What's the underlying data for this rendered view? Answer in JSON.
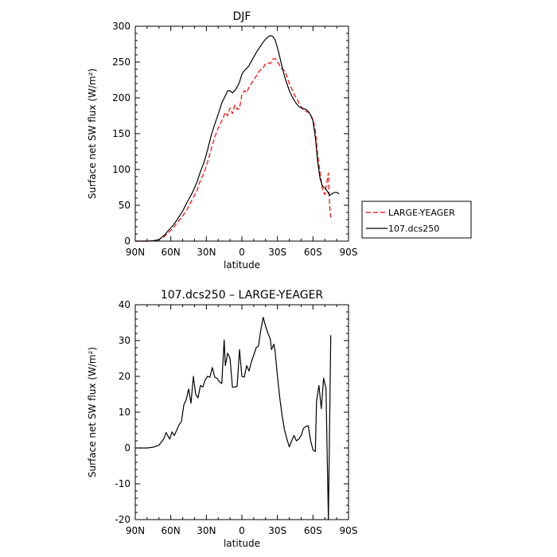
{
  "chart_data": [
    {
      "type": "line",
      "title": "DJF",
      "xlabel": "latitude",
      "ylabel": "Surface net SW flux (W/m²)",
      "xlim": [
        90,
        -90
      ],
      "ylim": [
        0,
        300
      ],
      "x_ticks": [
        {
          "v": 90,
          "label": "90N"
        },
        {
          "v": 60,
          "label": "60N"
        },
        {
          "v": 30,
          "label": "30N"
        },
        {
          "v": 0,
          "label": "0"
        },
        {
          "v": -30,
          "label": "30S"
        },
        {
          "v": -60,
          "label": "60S"
        },
        {
          "v": -90,
          "label": "90S"
        }
      ],
      "y_ticks": [
        0,
        50,
        100,
        150,
        200,
        250,
        300
      ],
      "legend": "right",
      "series": [
        {
          "name": "LARGE-YEAGER",
          "color": "#ff0000",
          "dash": "dashed",
          "points": [
            [
              90,
              0
            ],
            [
              80,
              0
            ],
            [
              75,
              0.5
            ],
            [
              70,
              2
            ],
            [
              65,
              7
            ],
            [
              62,
              12
            ],
            [
              58,
              18
            ],
            [
              55,
              25
            ],
            [
              50,
              35
            ],
            [
              46,
              45
            ],
            [
              42,
              58
            ],
            [
              38,
              70
            ],
            [
              35,
              85
            ],
            [
              32,
              95
            ],
            [
              29,
              110
            ],
            [
              26,
              128
            ],
            [
              23,
              145
            ],
            [
              20,
              158
            ],
            [
              17,
              168
            ],
            [
              14,
              180
            ],
            [
              12,
              175
            ],
            [
              10,
              186
            ],
            [
              8,
              178
            ],
            [
              6,
              190
            ],
            [
              4,
              184
            ],
            [
              2,
              185
            ],
            [
              0,
              205
            ],
            [
              -2,
              210
            ],
            [
              -4,
              207
            ],
            [
              -6,
              215
            ],
            [
              -8,
              220
            ],
            [
              -10,
              225
            ],
            [
              -12,
              230
            ],
            [
              -14,
              236
            ],
            [
              -16,
              240
            ],
            [
              -18,
              242
            ],
            [
              -20,
              248
            ],
            [
              -22,
              249
            ],
            [
              -24,
              248
            ],
            [
              -26,
              254
            ],
            [
              -28,
              255
            ],
            [
              -30,
              250
            ],
            [
              -32,
              245
            ],
            [
              -34,
              240
            ],
            [
              -36,
              238
            ],
            [
              -38,
              230
            ],
            [
              -40,
              220
            ],
            [
              -42,
              213
            ],
            [
              -44,
              205
            ],
            [
              -46,
              200
            ],
            [
              -48,
              193
            ],
            [
              -50,
              188
            ],
            [
              -52,
              183
            ],
            [
              -54,
              181
            ],
            [
              -56,
              180
            ],
            [
              -58,
              176
            ],
            [
              -60,
              170
            ],
            [
              -62,
              155
            ],
            [
              -64,
              120
            ],
            [
              -66,
              95
            ],
            [
              -68,
              72
            ],
            [
              -70,
              65
            ],
            [
              -72,
              85
            ],
            [
              -73,
              95
            ],
            [
              -74,
              50
            ],
            [
              -75,
              33
            ]
          ]
        },
        {
          "name": "107.dcs250",
          "color": "#000000",
          "dash": "solid",
          "points": [
            [
              90,
              0
            ],
            [
              80,
              0
            ],
            [
              75,
              0.5
            ],
            [
              70,
              2
            ],
            [
              65,
              9
            ],
            [
              62,
              15
            ],
            [
              58,
              22
            ],
            [
              55,
              29
            ],
            [
              50,
              42
            ],
            [
              46,
              55
            ],
            [
              42,
              67
            ],
            [
              38,
              82
            ],
            [
              35,
              97
            ],
            [
              32,
              110
            ],
            [
              29,
              127
            ],
            [
              26,
              147
            ],
            [
              23,
              163
            ],
            [
              20,
              177
            ],
            [
              17,
              193
            ],
            [
              14,
              203
            ],
            [
              12,
              210
            ],
            [
              10,
              210
            ],
            [
              8,
              207
            ],
            [
              6,
              210
            ],
            [
              4,
              215
            ],
            [
              2,
              222
            ],
            [
              0,
              233
            ],
            [
              -2,
              238
            ],
            [
              -4,
              241
            ],
            [
              -6,
              245
            ],
            [
              -8,
              251
            ],
            [
              -10,
              257
            ],
            [
              -12,
              263
            ],
            [
              -14,
              268
            ],
            [
              -16,
              273
            ],
            [
              -18,
              278
            ],
            [
              -20,
              282
            ],
            [
              -22,
              285
            ],
            [
              -24,
              287
            ],
            [
              -26,
              286
            ],
            [
              -28,
              281
            ],
            [
              -30,
              270
            ],
            [
              -32,
              257
            ],
            [
              -34,
              243
            ],
            [
              -36,
              230
            ],
            [
              -38,
              220
            ],
            [
              -40,
              210
            ],
            [
              -42,
              203
            ],
            [
              -44,
              197
            ],
            [
              -46,
              192
            ],
            [
              -48,
              188
            ],
            [
              -50,
              186
            ],
            [
              -52,
              185
            ],
            [
              -54,
              184
            ],
            [
              -56,
              181
            ],
            [
              -58,
              176
            ],
            [
              -60,
              168
            ],
            [
              -62,
              145
            ],
            [
              -64,
              110
            ],
            [
              -66,
              87
            ],
            [
              -68,
              77
            ],
            [
              -70,
              74
            ],
            [
              -72,
              70
            ],
            [
              -74,
              64
            ],
            [
              -76,
              66
            ],
            [
              -78,
              68
            ],
            [
              -80,
              68
            ],
            [
              -82,
              66
            ]
          ]
        }
      ]
    },
    {
      "type": "line",
      "title": "107.dcs250 – LARGE-YEAGER",
      "xlabel": "latitude",
      "ylabel": "Surface net SW flux (W/m²)",
      "xlim": [
        90,
        -90
      ],
      "ylim": [
        -20,
        40
      ],
      "x_ticks": [
        {
          "v": 90,
          "label": "90N"
        },
        {
          "v": 60,
          "label": "60N"
        },
        {
          "v": 30,
          "label": "30N"
        },
        {
          "v": 0,
          "label": "0"
        },
        {
          "v": -30,
          "label": "30S"
        },
        {
          "v": -60,
          "label": "60S"
        },
        {
          "v": -90,
          "label": "90S"
        }
      ],
      "y_ticks": [
        -20,
        -10,
        0,
        10,
        20,
        30,
        40
      ],
      "series": [
        {
          "name": "107.dcs250 – LARGE-YEAGER",
          "color": "#000000",
          "dash": "solid",
          "points": [
            [
              90,
              0
            ],
            [
              85,
              0
            ],
            [
              80,
              0
            ],
            [
              75,
              0.2
            ],
            [
              70,
              0.8
            ],
            [
              66,
              2.5
            ],
            [
              64,
              4.3
            ],
            [
              61,
              2.5
            ],
            [
              59,
              4.5
            ],
            [
              57,
              3.5
            ],
            [
              55,
              5
            ],
            [
              53,
              6.5
            ],
            [
              51,
              7.5
            ],
            [
              49,
              12
            ],
            [
              47,
              13.5
            ],
            [
              45,
              16.5
            ],
            [
              43,
              12.5
            ],
            [
              41,
              20
            ],
            [
              39,
              15
            ],
            [
              37,
              14
            ],
            [
              35,
              17.5
            ],
            [
              33,
              17
            ],
            [
              31,
              19
            ],
            [
              29,
              20
            ],
            [
              27,
              19.8
            ],
            [
              25,
              22.5
            ],
            [
              23,
              19.8
            ],
            [
              21,
              19.5
            ],
            [
              19,
              18.5
            ],
            [
              17,
              18
            ],
            [
              15,
              30.2
            ],
            [
              14,
              23
            ],
            [
              12,
              26.5
            ],
            [
              10,
              25
            ],
            [
              8,
              17
            ],
            [
              6,
              17
            ],
            [
              4,
              17.2
            ],
            [
              2,
              27.5
            ],
            [
              0,
              20
            ],
            [
              -2,
              19.8
            ],
            [
              -4,
              23
            ],
            [
              -6,
              21.5
            ],
            [
              -8,
              24
            ],
            [
              -10,
              26
            ],
            [
              -12,
              28
            ],
            [
              -14,
              28.5
            ],
            [
              -16,
              33
            ],
            [
              -18,
              36.5
            ],
            [
              -20,
              34
            ],
            [
              -22,
              32
            ],
            [
              -24,
              30.5
            ],
            [
              -25,
              27.5
            ],
            [
              -27,
              29
            ],
            [
              -28,
              27
            ],
            [
              -30,
              20
            ],
            [
              -32,
              14
            ],
            [
              -34,
              9
            ],
            [
              -36,
              5
            ],
            [
              -38,
              2.5
            ],
            [
              -40,
              0.3
            ],
            [
              -42,
              2
            ],
            [
              -44,
              3.5
            ],
            [
              -46,
              2
            ],
            [
              -48,
              2.5
            ],
            [
              -50,
              3.5
            ],
            [
              -52,
              5.5
            ],
            [
              -54,
              6
            ],
            [
              -56,
              6.2
            ],
            [
              -58,
              2
            ],
            [
              -60,
              -0.5
            ],
            [
              -62,
              -1
            ],
            [
              -63,
              13
            ],
            [
              -65,
              17.5
            ],
            [
              -67,
              11
            ],
            [
              -69,
              19.5
            ],
            [
              -71,
              16.5
            ],
            [
              -73,
              -20
            ],
            [
              -75,
              31.5
            ]
          ]
        }
      ]
    }
  ]
}
